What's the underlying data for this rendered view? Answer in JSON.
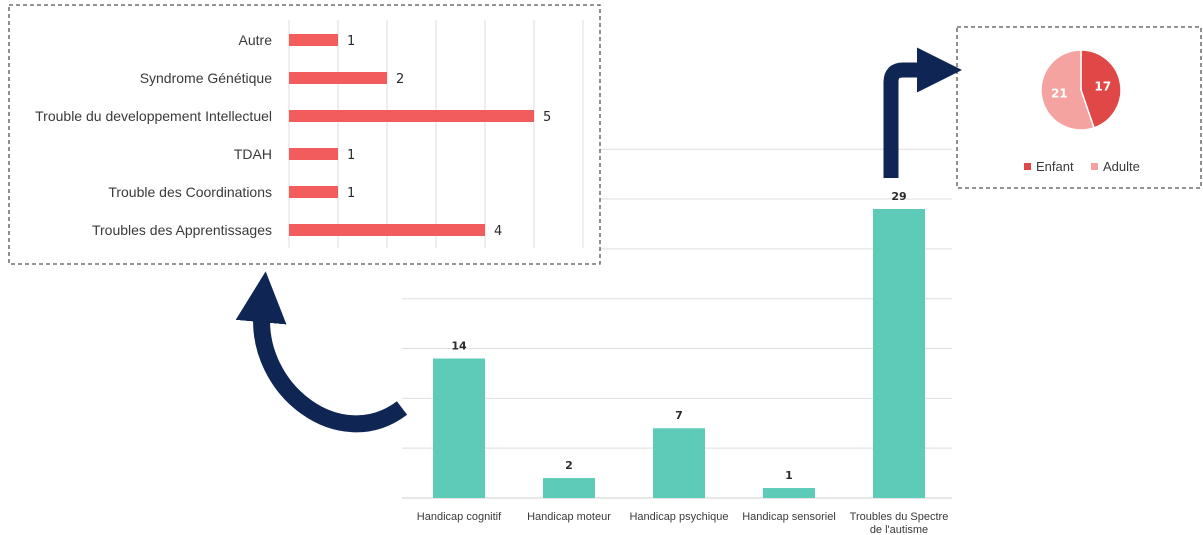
{
  "colors": {
    "bar_main": "#5ecbb8",
    "bar_detail": "#f25c5c",
    "pie_enfant": "#e04848",
    "pie_adulte": "#f4a3a0",
    "arrow": "#0f2654",
    "grid": "#dedede",
    "text": "#3a3a3a"
  },
  "chart_data": [
    {
      "type": "bar",
      "categories": [
        "Handicap cognitif",
        "Handicap moteur",
        "Handicap psychique",
        "Handicap sensoriel",
        "Troubles du Spectre de l'autisme"
      ],
      "category_lines": [
        [
          "Handicap cognitif"
        ],
        [
          "Handicap moteur"
        ],
        [
          "Handicap psychique"
        ],
        [
          "Handicap sensoriel"
        ],
        [
          "Troubles du Spectre",
          "de l'autisme"
        ]
      ],
      "values": [
        14,
        2,
        7,
        1,
        29
      ],
      "data_labels": [
        "14",
        "2",
        "7",
        "1",
        "29"
      ],
      "ylim": [
        0,
        35
      ],
      "grid": true,
      "orientation": "vertical"
    },
    {
      "type": "bar",
      "orientation": "horizontal",
      "categories": [
        "Autre",
        "Syndrome Génétique",
        "Trouble du developpement Intellectuel",
        "TDAH",
        "Trouble des Coordinations",
        "Troubles des Apprentissages"
      ],
      "values": [
        1,
        2,
        5,
        1,
        1,
        4
      ],
      "data_labels": [
        "1",
        "2",
        "5",
        "1",
        "1",
        "4"
      ],
      "xlim": [
        0,
        6
      ],
      "grid": true
    },
    {
      "type": "pie",
      "labels": [
        "Enfant",
        "Adulte"
      ],
      "values": [
        17,
        21
      ],
      "data_labels": [
        "17",
        "21"
      ],
      "legend": [
        "Enfant",
        "Adulte"
      ],
      "legend_position": "bottom"
    }
  ]
}
